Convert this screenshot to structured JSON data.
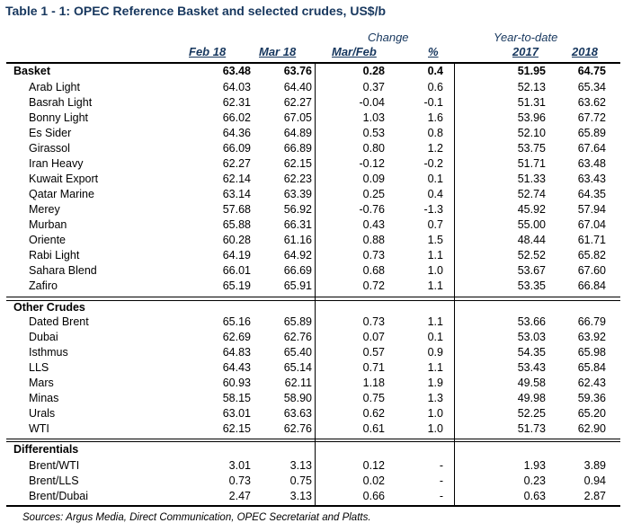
{
  "title": "Table 1 - 1: OPEC Reference Basket and selected crudes, US$/b",
  "headers": {
    "change": "Change",
    "ytd": "Year-to-date",
    "feb": "Feb 18",
    "mar": "Mar 18",
    "marfeb": "Mar/Feb",
    "pct": "%",
    "y2017": "2017",
    "y2018": "2018"
  },
  "basket": {
    "name": "Basket",
    "values": [
      "63.48",
      "63.76",
      "0.28",
      "0.4",
      "51.95",
      "64.75"
    ]
  },
  "opec_rows": [
    {
      "name": "Arab Light",
      "values": [
        "64.03",
        "64.40",
        "0.37",
        "0.6",
        "52.13",
        "65.34"
      ]
    },
    {
      "name": "Basrah Light",
      "values": [
        "62.31",
        "62.27",
        "-0.04",
        "-0.1",
        "51.31",
        "63.62"
      ]
    },
    {
      "name": "Bonny Light",
      "values": [
        "66.02",
        "67.05",
        "1.03",
        "1.6",
        "53.96",
        "67.72"
      ]
    },
    {
      "name": "Es Sider",
      "values": [
        "64.36",
        "64.89",
        "0.53",
        "0.8",
        "52.10",
        "65.89"
      ]
    },
    {
      "name": "Girassol",
      "values": [
        "66.09",
        "66.89",
        "0.80",
        "1.2",
        "53.75",
        "67.64"
      ]
    },
    {
      "name": "Iran Heavy",
      "values": [
        "62.27",
        "62.15",
        "-0.12",
        "-0.2",
        "51.71",
        "63.48"
      ]
    },
    {
      "name": "Kuwait Export",
      "values": [
        "62.14",
        "62.23",
        "0.09",
        "0.1",
        "51.33",
        "63.43"
      ]
    },
    {
      "name": "Qatar Marine",
      "values": [
        "63.14",
        "63.39",
        "0.25",
        "0.4",
        "52.74",
        "64.35"
      ]
    },
    {
      "name": "Merey",
      "values": [
        "57.68",
        "56.92",
        "-0.76",
        "-1.3",
        "45.92",
        "57.94"
      ]
    },
    {
      "name": "Murban",
      "values": [
        "65.88",
        "66.31",
        "0.43",
        "0.7",
        "55.00",
        "67.04"
      ]
    },
    {
      "name": "Oriente",
      "values": [
        "60.28",
        "61.16",
        "0.88",
        "1.5",
        "48.44",
        "61.71"
      ]
    },
    {
      "name": "Rabi Light",
      "values": [
        "64.19",
        "64.92",
        "0.73",
        "1.1",
        "52.52",
        "65.82"
      ]
    },
    {
      "name": "Sahara Blend",
      "values": [
        "66.01",
        "66.69",
        "0.68",
        "1.0",
        "53.67",
        "67.60"
      ]
    },
    {
      "name": "Zafiro",
      "values": [
        "65.19",
        "65.91",
        "0.72",
        "1.1",
        "53.35",
        "66.84"
      ]
    }
  ],
  "other_title": "Other Crudes",
  "other_rows": [
    {
      "name": "Dated Brent",
      "values": [
        "65.16",
        "65.89",
        "0.73",
        "1.1",
        "53.66",
        "66.79"
      ]
    },
    {
      "name": "Dubai",
      "values": [
        "62.69",
        "62.76",
        "0.07",
        "0.1",
        "53.03",
        "63.92"
      ]
    },
    {
      "name": "Isthmus",
      "values": [
        "64.83",
        "65.40",
        "0.57",
        "0.9",
        "54.35",
        "65.98"
      ]
    },
    {
      "name": "LLS",
      "values": [
        "64.43",
        "65.14",
        "0.71",
        "1.1",
        "53.43",
        "65.84"
      ]
    },
    {
      "name": "Mars",
      "values": [
        "60.93",
        "62.11",
        "1.18",
        "1.9",
        "49.58",
        "62.43"
      ]
    },
    {
      "name": "Minas",
      "values": [
        "58.15",
        "58.90",
        "0.75",
        "1.3",
        "49.98",
        "59.36"
      ]
    },
    {
      "name": "Urals",
      "values": [
        "63.01",
        "63.63",
        "0.62",
        "1.0",
        "52.25",
        "65.20"
      ]
    },
    {
      "name": "WTI",
      "values": [
        "62.15",
        "62.76",
        "0.61",
        "1.0",
        "51.73",
        "62.90"
      ]
    }
  ],
  "diff_title": "Differentials",
  "diff_rows": [
    {
      "name": "Brent/WTI",
      "values": [
        "3.01",
        "3.13",
        "0.12",
        "-",
        "1.93",
        "3.89"
      ]
    },
    {
      "name": "Brent/LLS",
      "values": [
        "0.73",
        "0.75",
        "0.02",
        "-",
        "0.23",
        "0.94"
      ]
    },
    {
      "name": "Brent/Dubai",
      "values": [
        "2.47",
        "3.13",
        "0.66",
        "-",
        "0.63",
        "2.87"
      ]
    }
  ],
  "source": "Sources: Argus Media, Direct Communication, OPEC Secretariat and Platts.",
  "colors": {
    "header_text": "#17375e",
    "rule": "#000000"
  }
}
